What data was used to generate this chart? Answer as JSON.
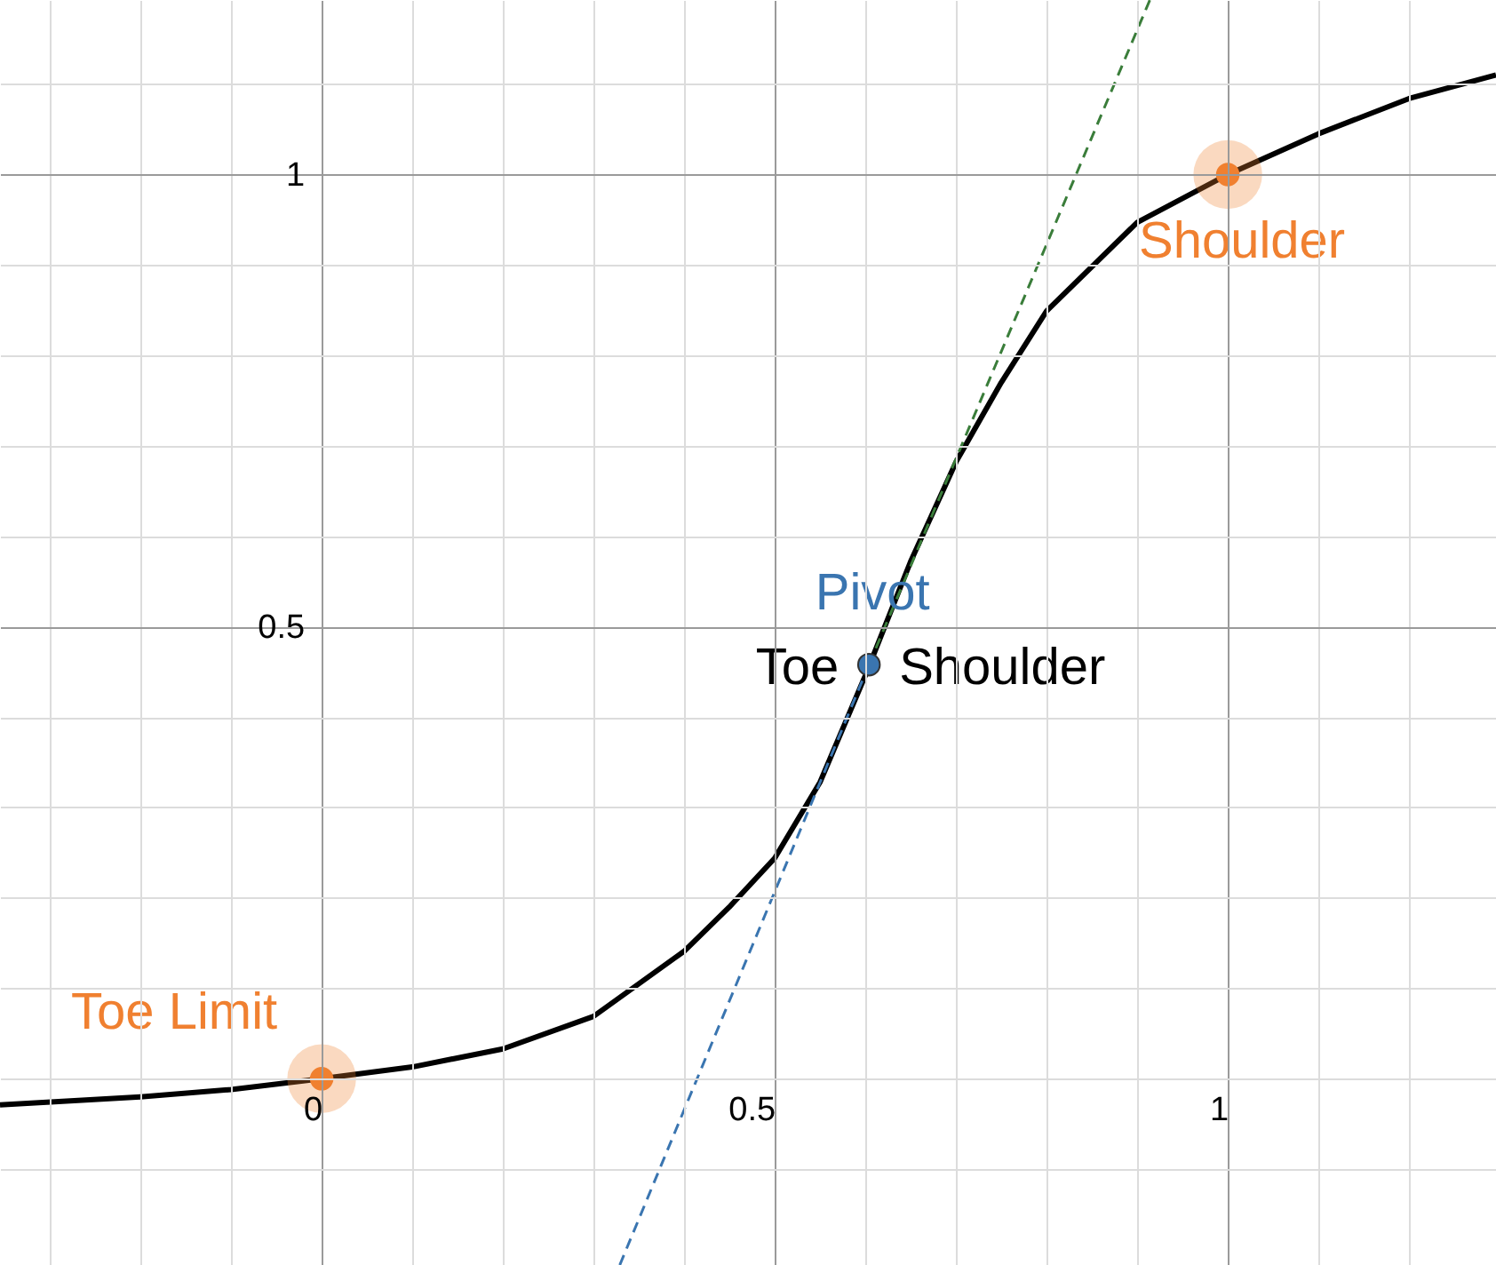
{
  "chart_data": {
    "type": "line",
    "xlim": [
      -0.355,
      1.296
    ],
    "ylim": [
      -0.206,
      1.193
    ],
    "xticks": [
      {
        "value": -0.3,
        "label": null
      },
      {
        "value": -0.2,
        "label": null
      },
      {
        "value": -0.1,
        "label": null
      },
      0,
      {
        "value": 0.1,
        "label": null
      },
      {
        "value": 0.2,
        "label": null
      },
      {
        "value": 0.3,
        "label": null
      },
      {
        "value": 0.4,
        "label": null
      },
      0.5,
      {
        "value": 0.6,
        "label": null
      },
      {
        "value": 0.7,
        "label": null
      },
      {
        "value": 0.8,
        "label": null
      },
      {
        "value": 0.9,
        "label": null
      },
      1,
      {
        "value": 1.1,
        "label": null
      },
      {
        "value": 1.2,
        "label": null
      }
    ],
    "yticks": [
      {
        "value": -0.1,
        "label": null
      },
      {
        "value": 0,
        "label": null
      },
      {
        "value": 0.1,
        "label": null
      },
      {
        "value": 0.2,
        "label": null
      },
      {
        "value": 0.3,
        "label": null
      },
      {
        "value": 0.4,
        "label": null
      },
      0.5,
      {
        "value": 0.6,
        "label": null
      },
      {
        "value": 0.7,
        "label": null
      },
      {
        "value": 0.8,
        "label": null
      },
      {
        "value": 0.9,
        "label": null
      },
      1,
      {
        "value": 1.1,
        "label": null
      }
    ],
    "grid": true,
    "series": [
      {
        "color": "#000000",
        "line_style": "solid",
        "x": [
          -0.355,
          -0.2,
          -0.1,
          0,
          0.1,
          0.2,
          0.3,
          0.4,
          0.45,
          0.5,
          0.55,
          0.6,
          0.65,
          0.7,
          0.75,
          0.8,
          0.9,
          1.0,
          1.1,
          1.2,
          1.296
        ],
        "values": [
          -0.029,
          -0.02,
          -0.012,
          0,
          0.013,
          0.033,
          0.069,
          0.141,
          0.19,
          0.244,
          0.328,
          0.446,
          0.572,
          0.682,
          0.77,
          0.849,
          0.947,
          1.0,
          1.045,
          1.084,
          1.11
        ]
      },
      {
        "color": "#3a7d3a",
        "line_style": "dashed",
        "x": [
          0.604,
          0.914
        ],
        "values": [
          0.458,
          1.193
        ]
      },
      {
        "color": "#3a75b0",
        "line_style": "dashed",
        "x": [
          0.329,
          0.604
        ],
        "values": [
          -0.206,
          0.458
        ]
      },
      {
        "type": "scatter",
        "name": "Toe Limit",
        "color": "#f08030",
        "marker": "circle",
        "x": [
          0
        ],
        "values": [
          0
        ]
      },
      {
        "type": "scatter",
        "name": "Shoulder",
        "color": "#f08030",
        "marker": "circle",
        "x": [
          1
        ],
        "values": [
          1
        ]
      },
      {
        "type": "scatter",
        "name": "Pivot",
        "color": "#3a75b0",
        "marker": "circle",
        "x": [
          0.604
        ],
        "values": [
          0.458
        ]
      }
    ],
    "annotations": [
      {
        "text": "Toe",
        "x": 0.604,
        "y": 0.458
      },
      {
        "text": "Shoulder",
        "x": 0.604,
        "y": 0.458
      }
    ]
  }
}
